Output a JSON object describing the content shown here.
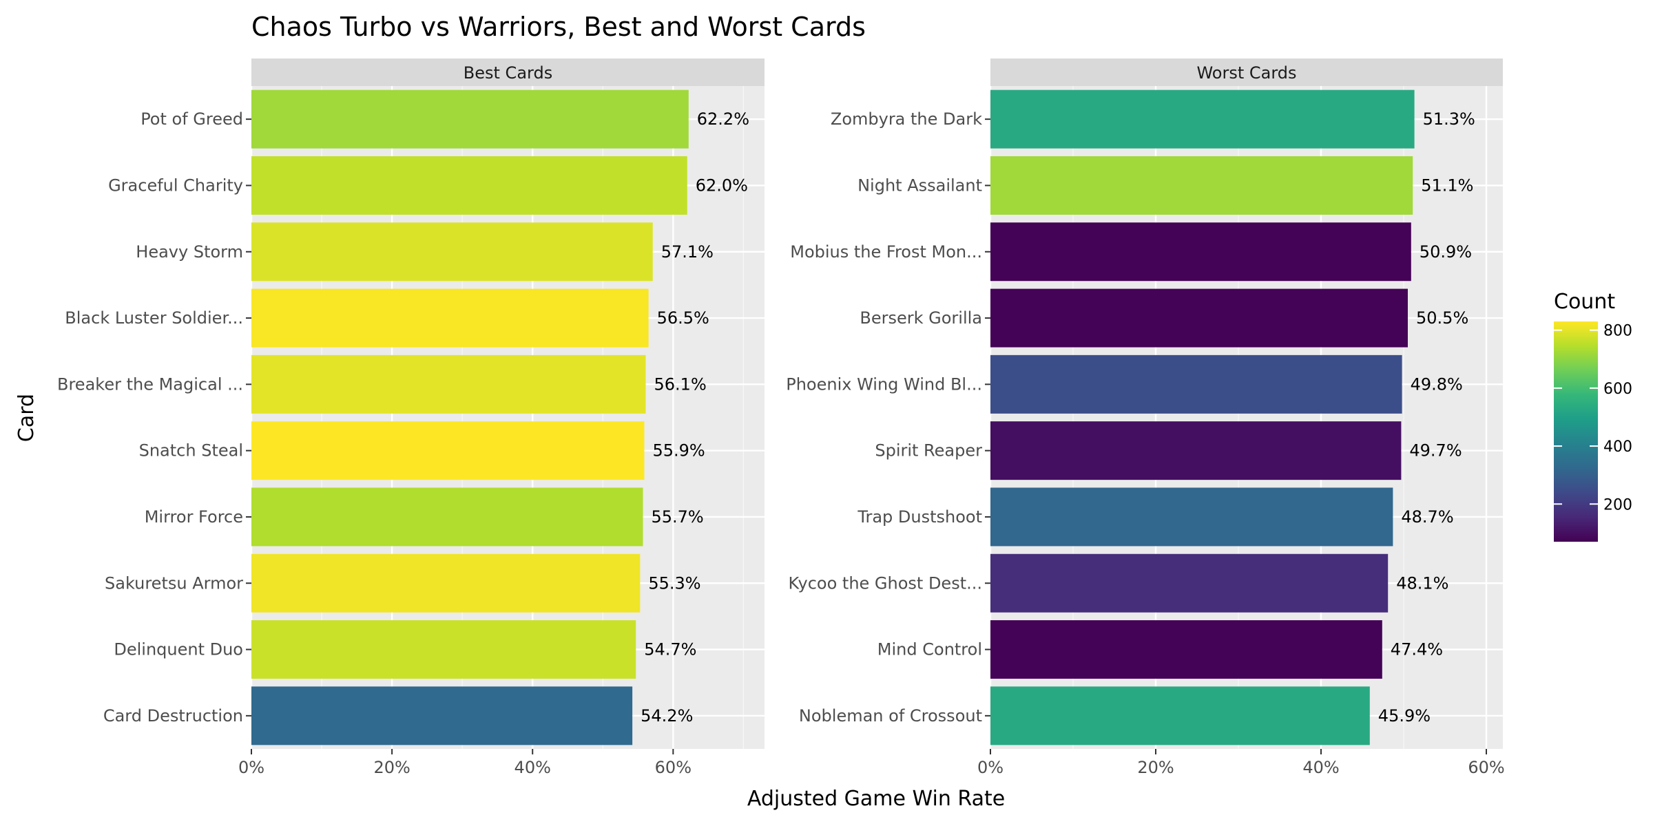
{
  "chart_data": {
    "type": "bar",
    "orientation": "horizontal",
    "title": "Chaos Turbo vs Warriors, Best and Worst Cards",
    "xlabel": "Adjusted Game Win Rate",
    "ylabel": "Card",
    "x_ticks": [
      "0%",
      "20%",
      "40%",
      "60%"
    ],
    "grid": true,
    "legend": {
      "title": "Count",
      "placement": "right",
      "type": "colorbar",
      "range": [
        70,
        830
      ],
      "ticks": [
        200,
        400,
        600,
        800
      ],
      "colormap": [
        "#440154",
        "#482878",
        "#3e4a89",
        "#31688e",
        "#26828e",
        "#1f9e89",
        "#35b779",
        "#6ece58",
        "#b5de2b",
        "#fde725"
      ]
    },
    "panels": [
      {
        "strip": "Best Cards",
        "xlim": [
          0,
          0.73
        ],
        "categories": [
          "Pot of Greed",
          "Graceful Charity",
          "Heavy Storm",
          "Black Luster Soldier...",
          "Breaker the Magical ...",
          "Snatch Steal",
          "Mirror Force",
          "Sakuretsu Armor",
          "Delinquent Duo",
          "Card Destruction"
        ],
        "values": [
          0.622,
          0.62,
          0.571,
          0.565,
          0.561,
          0.559,
          0.557,
          0.553,
          0.547,
          0.542
        ],
        "labels": [
          "62.2%",
          "62.0%",
          "57.1%",
          "56.5%",
          "56.1%",
          "55.9%",
          "55.7%",
          "55.3%",
          "54.7%",
          "54.2%"
        ],
        "counts": [
          720,
          760,
          790,
          825,
          800,
          830,
          740,
          815,
          770,
          330
        ]
      },
      {
        "strip": "Worst Cards",
        "xlim": [
          0,
          0.62
        ],
        "categories": [
          "Zombyra the Dark",
          "Night Assailant",
          "Mobius the Frost Mon...",
          "Berserk Gorilla",
          "Phoenix Wing Wind Bl...",
          "Spirit Reaper",
          "Trap Dustshoot",
          "Kycoo the Ghost Dest...",
          "Mind Control",
          "Nobleman of Crossout"
        ],
        "values": [
          0.513,
          0.511,
          0.509,
          0.505,
          0.498,
          0.497,
          0.487,
          0.481,
          0.474,
          0.459
        ],
        "labels": [
          "51.3%",
          "51.1%",
          "50.9%",
          "50.5%",
          "49.8%",
          "49.7%",
          "48.7%",
          "48.1%",
          "47.4%",
          "45.9%"
        ],
        "counts": [
          530,
          720,
          75,
          75,
          250,
          100,
          320,
          170,
          75,
          530
        ]
      }
    ]
  }
}
